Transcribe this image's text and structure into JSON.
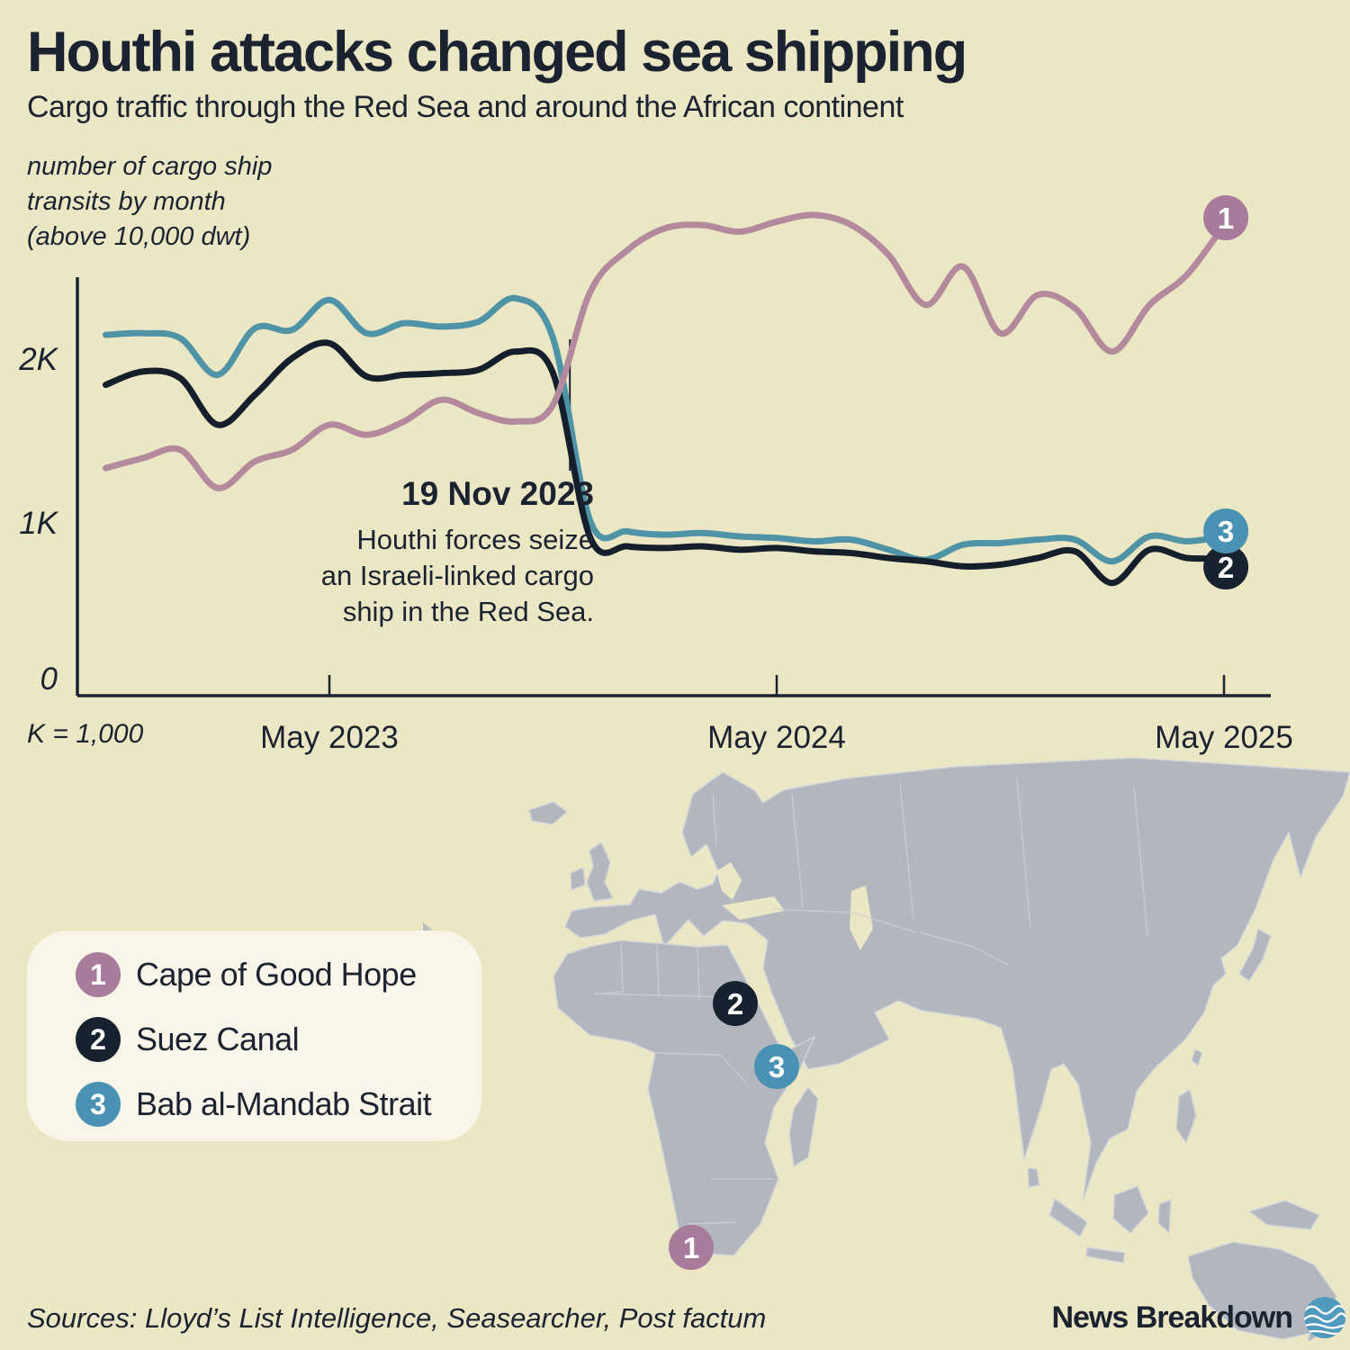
{
  "page": {
    "title": "Houthi attacks changed sea shipping",
    "subtitle": "Cargo traffic through the Red Sea and around the African continent",
    "axis_note_lines": [
      "number of cargo ship",
      "transits by month",
      "(above 10,000 dwt)"
    ],
    "k_note": "K = 1,000",
    "sources": "Sources: Lloyd’s List Intelligence, Seasearcher, Post factum",
    "brand": "News Breakdown",
    "background_color": "#ebe6c4",
    "ink_color": "#1b2330"
  },
  "chart_data": {
    "type": "line",
    "title": "number of cargo ship transits by month (above 10,000 dwt)",
    "unit": "cargo ship transits per month",
    "grid": false,
    "ylim": [
      0,
      2500
    ],
    "y_tick_labels": [
      "2K",
      "1K",
      "0"
    ],
    "x_tick_labels": [
      "May 2023",
      "May 2024",
      "May 2025"
    ],
    "x": [
      "Nov 2022",
      "Dec 2022",
      "Jan 2023",
      "Feb 2023",
      "Mar 2023",
      "Apr 2023",
      "May 2023",
      "Jun 2023",
      "Jul 2023",
      "Aug 2023",
      "Sep 2023",
      "Oct 2023",
      "Nov 2023",
      "Dec 2023",
      "Jan 2024",
      "Feb 2024",
      "Mar 2024",
      "Apr 2024",
      "May 2024",
      "Jun 2024",
      "Jul 2024",
      "Aug 2024",
      "Sep 2024",
      "Oct 2024",
      "Nov 2024",
      "Dec 2024",
      "Jan 2025",
      "Feb 2025",
      "Mar 2025",
      "Apr 2025",
      "May 2025"
    ],
    "series": [
      {
        "name": "Cape of Good Hope",
        "number": "1",
        "line_color": "#b28a9c",
        "badge_color": "#a87b9a",
        "values": [
          1340,
          1400,
          1450,
          1220,
          1380,
          1450,
          1600,
          1540,
          1620,
          1750,
          1670,
          1620,
          1720,
          2400,
          2650,
          2780,
          2800,
          2760,
          2820,
          2860,
          2800,
          2620,
          2320,
          2550,
          2150,
          2380,
          2300,
          2040,
          2320,
          2500,
          2800
        ]
      },
      {
        "name": "Suez Canal",
        "number": "2",
        "line_color": "#141f2b",
        "badge_color": "#16222e",
        "values": [
          1840,
          1920,
          1880,
          1600,
          1780,
          2000,
          2090,
          1890,
          1900,
          1910,
          1930,
          2040,
          1910,
          920,
          870,
          860,
          870,
          850,
          860,
          840,
          830,
          800,
          780,
          750,
          760,
          800,
          840,
          650,
          850,
          800,
          800
        ]
      },
      {
        "name": "Bab al-Mandab Strait",
        "number": "3",
        "line_color": "#4e93a6",
        "badge_color": "#4a92b4",
        "values": [
          2140,
          2150,
          2120,
          1900,
          2180,
          2170,
          2350,
          2150,
          2210,
          2190,
          2220,
          2360,
          2120,
          1020,
          960,
          940,
          950,
          930,
          920,
          900,
          910,
          850,
          790,
          880,
          890,
          910,
          910,
          780,
          930,
          900,
          930
        ]
      }
    ],
    "annotation": {
      "date": "19 Nov 2023",
      "lines": [
        "Houthi forces seize",
        "an Israeli-linked cargo",
        "ship in the Red Sea."
      ],
      "x_month_index": 12.45
    }
  },
  "legend": {
    "items": [
      {
        "number": "1",
        "label": "Cape of Good Hope",
        "color": "#a87b9a"
      },
      {
        "number": "2",
        "label": "Suez Canal",
        "color": "#16222e"
      },
      {
        "number": "3",
        "label": "Bab al-Mandab Strait",
        "color": "#4a92b4"
      }
    ]
  },
  "map": {
    "land_color": "#b2b6bf",
    "border_color": "#d2d5da",
    "markers": [
      {
        "number": "1",
        "label": "Cape of Good Hope",
        "x": 208,
        "y": 546,
        "color": "#a87b9a"
      },
      {
        "number": "2",
        "label": "Suez Canal",
        "x": 257,
        "y": 275,
        "color": "#16222e"
      },
      {
        "number": "3",
        "label": "Bab al-Mandab Strait",
        "x": 303,
        "y": 345,
        "color": "#4a92b4"
      }
    ]
  },
  "logo": {
    "color": "#4f9abd"
  }
}
